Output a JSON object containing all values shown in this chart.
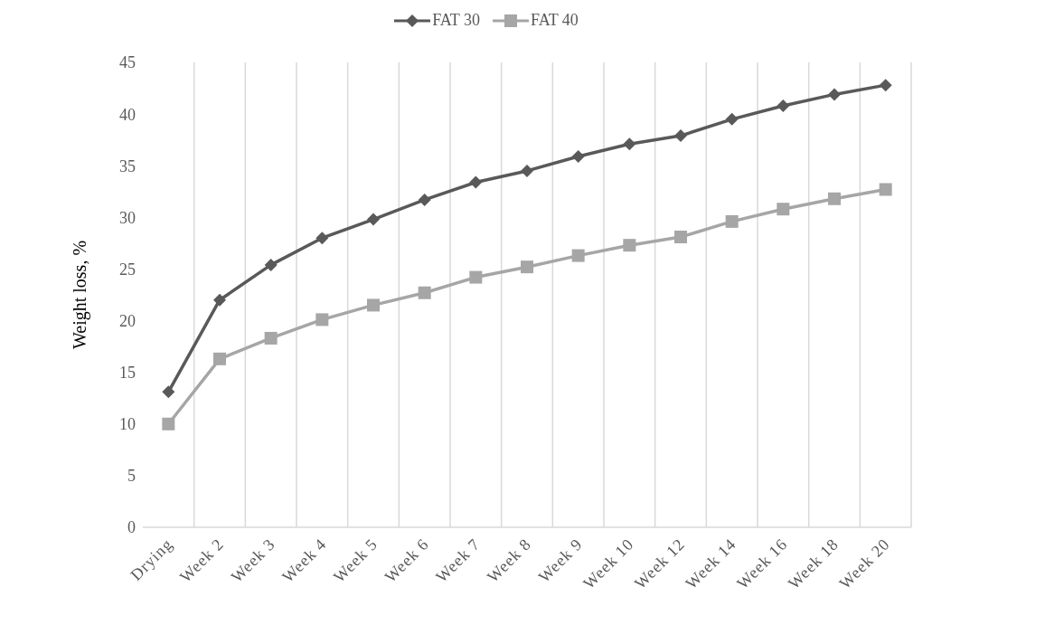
{
  "chart_data": {
    "type": "line",
    "ylabel": "Weight loss, %",
    "categories": [
      "Drying",
      "Week 2",
      "Week 3",
      "Week 4",
      "Week 5",
      "Week 6",
      "Week 7",
      "Week 8",
      "Week 9",
      "Week 10",
      "Week 12",
      "Week 14",
      "Week 16",
      "Week 18",
      "Week 20"
    ],
    "series": [
      {
        "name": "FAT 30",
        "color": "#595959",
        "marker": "diamond",
        "values": [
          13.1,
          22.0,
          25.4,
          28.0,
          29.8,
          31.7,
          33.4,
          34.5,
          35.9,
          37.1,
          37.9,
          39.5,
          40.8,
          41.9,
          42.8
        ]
      },
      {
        "name": "FAT 40",
        "color": "#a6a6a6",
        "marker": "square",
        "values": [
          10.0,
          16.3,
          18.3,
          20.1,
          21.5,
          22.7,
          24.2,
          25.2,
          26.3,
          27.3,
          28.1,
          29.6,
          30.8,
          31.8,
          32.7
        ]
      }
    ],
    "ylim": [
      0,
      45
    ],
    "yticks": [
      0,
      5,
      10,
      15,
      20,
      25,
      30,
      35,
      40,
      45
    ],
    "grid": "x",
    "legend": "top",
    "line_style": "solid"
  }
}
